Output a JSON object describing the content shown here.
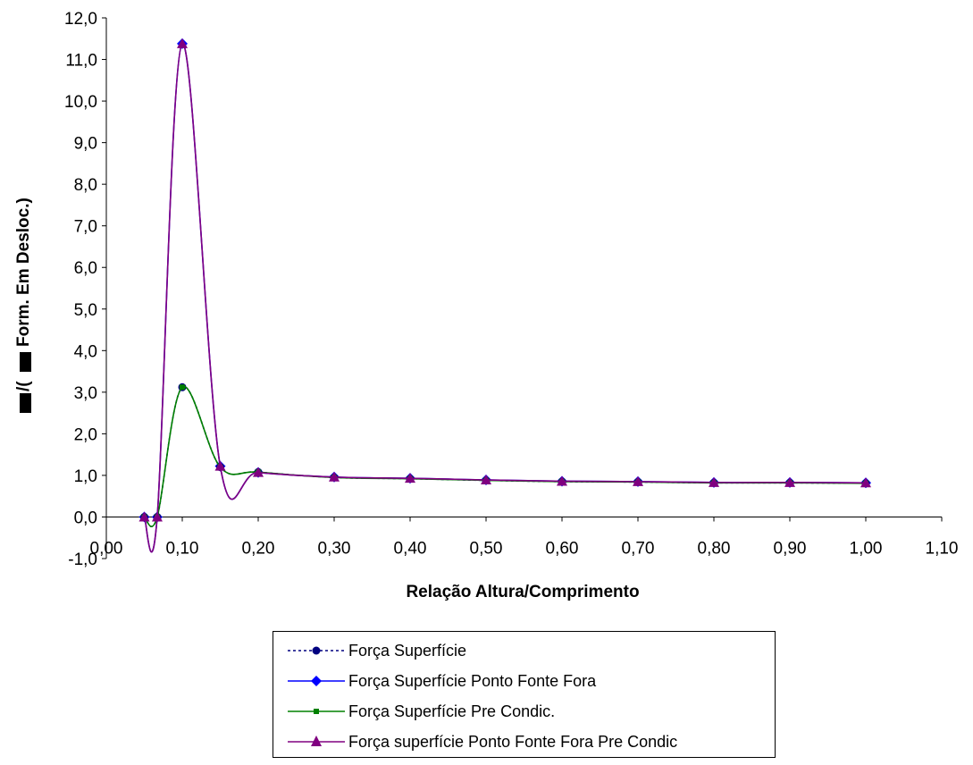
{
  "chart_data": {
    "type": "line",
    "title": "",
    "xlabel": "Relação Altura/Comprimento",
    "ylabel": "Form. Em Desloc.)",
    "ylabel_prefix": "/(",
    "xlim": [
      0.0,
      1.1
    ],
    "ylim": [
      -1.0,
      12.0
    ],
    "xticks": [
      "0,00",
      "0,10",
      "0,20",
      "0,30",
      "0,40",
      "0,50",
      "0,60",
      "0,70",
      "0,80",
      "0,90",
      "1,00",
      "1,10"
    ],
    "yticks": [
      "-1,0",
      "0,0",
      "1,0",
      "2,0",
      "3,0",
      "4,0",
      "5,0",
      "6,0",
      "7,0",
      "8,0",
      "9,0",
      "10,0",
      "11,0",
      "12,0"
    ],
    "grid": false,
    "legend_position": "bottom",
    "x": [
      0.05,
      0.067,
      0.1,
      0.15,
      0.2,
      0.3,
      0.4,
      0.5,
      0.6,
      0.7,
      0.8,
      0.9,
      1.0
    ],
    "series": [
      {
        "name": "Força Superfície",
        "color": "#000080",
        "dash": "dotted",
        "marker": "circle",
        "values": [
          0.0,
          0.0,
          3.12,
          1.2,
          1.08,
          0.95,
          0.92,
          0.88,
          0.85,
          0.84,
          0.82,
          0.82,
          0.81
        ]
      },
      {
        "name": "Força Superfície Ponto Fonte Fora",
        "color": "#0000ff",
        "dash": "solid",
        "marker": "diamond",
        "values": [
          0.0,
          0.0,
          11.38,
          1.22,
          1.07,
          0.96,
          0.93,
          0.89,
          0.86,
          0.85,
          0.83,
          0.83,
          0.82
        ]
      },
      {
        "name": "Força Superfície Pre Condic.",
        "color": "#008000",
        "dash": "solid",
        "marker": "square",
        "values": [
          0.0,
          0.0,
          3.12,
          1.2,
          1.08,
          0.95,
          0.92,
          0.88,
          0.85,
          0.84,
          0.82,
          0.82,
          0.81
        ]
      },
      {
        "name": "Força superfície Ponto Fonte Fora Pre Condic",
        "color": "#800080",
        "dash": "solid",
        "marker": "triangle",
        "values": [
          0.0,
          0.0,
          11.38,
          1.22,
          1.07,
          0.96,
          0.93,
          0.89,
          0.86,
          0.85,
          0.83,
          0.83,
          0.82
        ]
      }
    ]
  },
  "legend": {
    "items": [
      {
        "label": "Força Superfície"
      },
      {
        "label": "Força Superfície Ponto Fonte Fora"
      },
      {
        "label": "Força Superfície Pre Condic."
      },
      {
        "label": "Força superfície Ponto Fonte Fora Pre Condic"
      }
    ]
  }
}
